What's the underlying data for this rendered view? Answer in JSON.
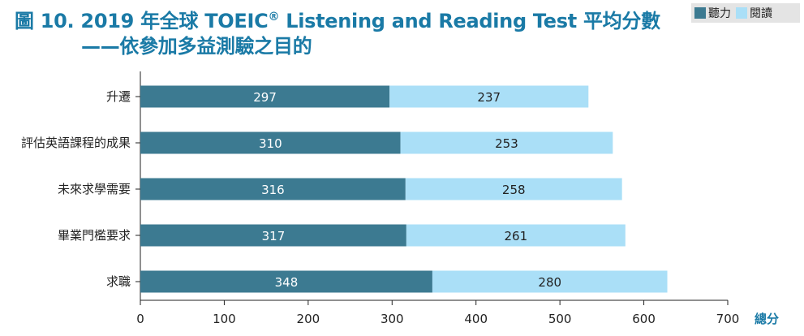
{
  "title_prefix": "圖 10. 2019 年全球 TOEIC",
  "title_suffix": " Listening and Reading Test 平均分數",
  "subtitle": "——依參加多益測驗之目的",
  "reg_mark": "®",
  "colors": {
    "listening": "#3c7a91",
    "reading": "#aadff7",
    "title": "#1a7aa6",
    "axis_label": "#1a7aa6"
  },
  "chart_data": {
    "type": "bar",
    "orientation": "horizontal",
    "stacked": true,
    "categories": [
      "升遷",
      "評估英語課程的成果",
      "未來求學需要",
      "畢業門檻要求",
      "求職"
    ],
    "series": [
      {
        "name": "聽力",
        "values": [
          297,
          310,
          316,
          317,
          348
        ]
      },
      {
        "name": "閱讀",
        "values": [
          237,
          253,
          258,
          261,
          280
        ]
      }
    ],
    "xlabel": "總分",
    "xlim": [
      0,
      700
    ],
    "xticks": [
      0,
      100,
      200,
      300,
      400,
      500,
      600,
      700
    ],
    "grid": false,
    "legend_position": "top-right"
  }
}
